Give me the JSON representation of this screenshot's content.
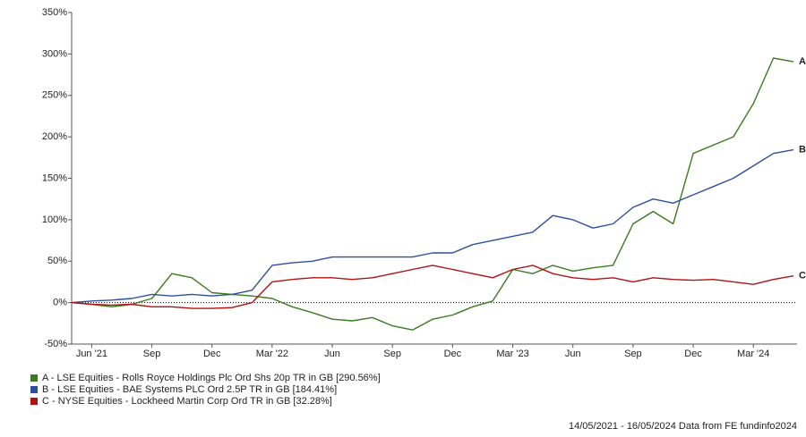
{
  "chart_data": {
    "type": "line",
    "categories": [
      null,
      "Jun '21",
      null,
      null,
      "Sep",
      null,
      null,
      "Dec",
      null,
      null,
      "Mar '22",
      null,
      null,
      "Jun",
      null,
      null,
      "Sep",
      null,
      null,
      "Dec",
      null,
      null,
      "Mar '23",
      null,
      null,
      "Jun",
      null,
      null,
      "Sep",
      null,
      null,
      "Dec",
      null,
      null,
      "Mar '24",
      null,
      null
    ],
    "series": [
      {
        "name": "A - LSE Equities - Rolls Royce Holdings Plc Ord Shs 20p TR in GB [290.56%]",
        "label": "A",
        "color": "#3b7a1f",
        "values": [
          0,
          -2,
          -5,
          -2,
          5,
          35,
          30,
          12,
          10,
          8,
          5,
          -5,
          -12,
          -20,
          -22,
          -18,
          -28,
          -33,
          -20,
          -15,
          -5,
          2,
          40,
          35,
          45,
          38,
          42,
          45,
          95,
          110,
          95,
          180,
          190,
          200,
          240,
          295,
          290.56
        ]
      },
      {
        "name": "B - LSE Equities - BAE Systems PLC Ord 2.5P TR in GB [184.41%]",
        "label": "B",
        "color": "#2c4fa0",
        "values": [
          0,
          2,
          3,
          5,
          10,
          8,
          10,
          8,
          10,
          15,
          45,
          48,
          50,
          55,
          55,
          55,
          55,
          55,
          60,
          60,
          70,
          75,
          80,
          85,
          105,
          100,
          90,
          95,
          115,
          125,
          120,
          130,
          140,
          150,
          165,
          180,
          184.41
        ]
      },
      {
        "name": "C - NYSE Equities - Lockheed Martin Corp Ord TR in GB [32.28%]",
        "label": "C",
        "color": "#b01212",
        "values": [
          0,
          -2,
          -3,
          -2,
          -5,
          -5,
          -7,
          -7,
          -6,
          0,
          25,
          28,
          30,
          30,
          28,
          30,
          35,
          40,
          45,
          40,
          35,
          30,
          40,
          45,
          35,
          30,
          28,
          30,
          25,
          30,
          28,
          27,
          28,
          25,
          22,
          28,
          32.28
        ]
      }
    ],
    "ylim": [
      -50,
      350
    ],
    "yticks": [
      {
        "value": -50,
        "label": "-50%"
      },
      {
        "value": 0,
        "label": "0%"
      },
      {
        "value": 50,
        "label": "50%"
      },
      {
        "value": 100,
        "label": "100%"
      },
      {
        "value": 150,
        "label": "150%"
      },
      {
        "value": 200,
        "label": "200%"
      },
      {
        "value": 250,
        "label": "250%"
      },
      {
        "value": 300,
        "label": "300%"
      },
      {
        "value": 350,
        "label": "350%"
      }
    ],
    "footer": "14/05/2021 - 16/05/2024 Data from FE fundinfo2024"
  }
}
